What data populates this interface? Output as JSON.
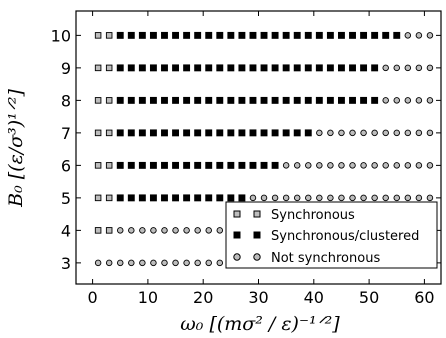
{
  "chart_data": {
    "type": "scatter",
    "xlabel": "ω₀ [(mσ² / ε)⁻¹ᐟ²]",
    "ylabel": "B₀ [(ε/σ³)¹ᐟ²]",
    "xlim": [
      -3,
      63
    ],
    "ylim": [
      2.35,
      10.75
    ],
    "x_ticks": [
      0,
      10,
      20,
      30,
      40,
      50,
      60
    ],
    "y_ticks": [
      3,
      4,
      5,
      6,
      7,
      8,
      9,
      10
    ],
    "legend_position": "lower-right",
    "series": [
      {
        "name": "Synchronous",
        "marker": "open-square",
        "points": [
          [
            1,
            10
          ],
          [
            1,
            9
          ],
          [
            1,
            8
          ],
          [
            1,
            7
          ],
          [
            1,
            6
          ],
          [
            1,
            5
          ],
          [
            1,
            4
          ],
          [
            3,
            10
          ],
          [
            3,
            9
          ],
          [
            3,
            8
          ],
          [
            3,
            7
          ],
          [
            3,
            6
          ],
          [
            3,
            5
          ],
          [
            3,
            4
          ]
        ]
      },
      {
        "name": "Synchronous/clustered",
        "marker": "filled-square",
        "rows": [
          {
            "y": 10,
            "x_start": 5,
            "x_end": 55,
            "step": 2
          },
          {
            "y": 9,
            "x_start": 5,
            "x_end": 51,
            "step": 2
          },
          {
            "y": 8,
            "x_start": 5,
            "x_end": 51,
            "step": 2
          },
          {
            "y": 7,
            "x_start": 5,
            "x_end": 39,
            "step": 2
          },
          {
            "y": 6,
            "x_start": 5,
            "x_end": 33,
            "step": 2
          },
          {
            "y": 5,
            "x_start": 5,
            "x_end": 27,
            "step": 2
          }
        ]
      },
      {
        "name": "Not synchronous",
        "marker": "open-circle",
        "rows": [
          {
            "y": 10,
            "x_start": 57,
            "x_end": 61,
            "step": 2
          },
          {
            "y": 9,
            "x_start": 53,
            "x_end": 61,
            "step": 2
          },
          {
            "y": 8,
            "x_start": 53,
            "x_end": 61,
            "step": 2
          },
          {
            "y": 7,
            "x_start": 41,
            "x_end": 61,
            "step": 2
          },
          {
            "y": 6,
            "x_start": 35,
            "x_end": 61,
            "step": 2
          },
          {
            "y": 5,
            "x_start": 29,
            "x_end": 61,
            "step": 2
          },
          {
            "y": 4,
            "x_start": 5,
            "x_end": 61,
            "step": 2
          },
          {
            "y": 3,
            "x_start": 1,
            "x_end": 61,
            "step": 2
          }
        ]
      }
    ]
  },
  "legend": {
    "synchronous": "Synchronous",
    "clustered": "Synchronous/clustered",
    "not_synchronous": "Not synchronous"
  },
  "colors": {
    "marker_fill_open": "#bdbdbd",
    "marker_fill_filled": "#000000",
    "marker_edge": "#000000"
  }
}
